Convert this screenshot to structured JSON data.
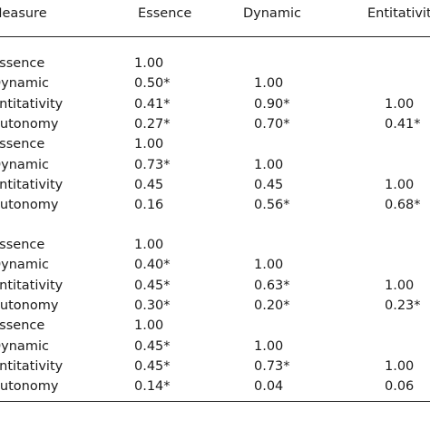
{
  "table": {
    "header": [
      "Measure",
      "Essence",
      "Dynamic",
      "Entitativity"
    ],
    "rows": [
      [
        "Essence",
        "1.00"
      ],
      [
        "Dynamic",
        "0.50*",
        "1.00"
      ],
      [
        "Entitativity",
        "0.41*",
        "0.90*",
        "1.00"
      ],
      [
        "Autonomy",
        "0.27*",
        "0.70*",
        "0.41*"
      ],
      [
        "Essence",
        "1.00"
      ],
      [
        "Dynamic",
        "0.73*",
        "1.00"
      ],
      [
        "Entitativity",
        "0.45",
        "0.45",
        "1.00"
      ],
      [
        "Autonomy",
        "0.16",
        "0.56*",
        "0.68*"
      ],
      [
        "Essence",
        "1.00"
      ],
      [
        "Dynamic",
        "0.40*",
        "1.00"
      ],
      [
        "Entitativity",
        "0.45*",
        "0.63*",
        "1.00"
      ],
      [
        "Autonomy",
        "0.30*",
        "0.20*",
        "0.23*"
      ],
      [
        "Essence",
        "1.00"
      ],
      [
        "Dynamic",
        "0.45*",
        "1.00"
      ],
      [
        "Entitativity",
        "0.45*",
        "0.73*",
        "1.00"
      ],
      [
        "Autonomy",
        "0.14*",
        "0.04",
        "0.06"
      ]
    ]
  }
}
